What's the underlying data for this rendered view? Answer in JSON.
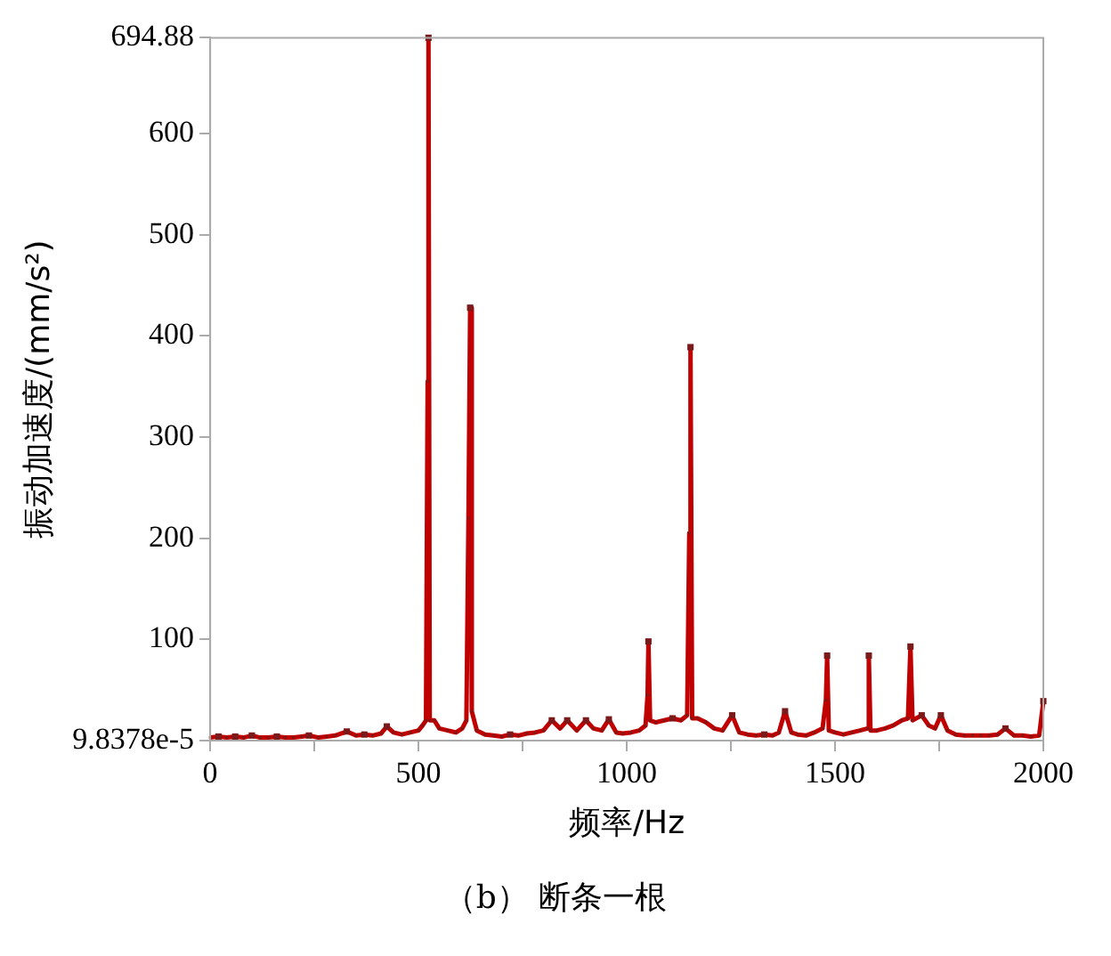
{
  "chart_data": {
    "type": "line",
    "xlabel": "频率/Hz",
    "ylabel": "振动加速度/(mm/s²)",
    "annotations": [
      "（b）  断条一根"
    ],
    "xlim": [
      0,
      2000
    ],
    "xticks": [
      0,
      {
        "value": 250,
        "label": null
      },
      500,
      {
        "value": 750,
        "label": null
      },
      1000,
      {
        "value": 1250,
        "label": null
      },
      1500,
      {
        "value": 1750,
        "label": null
      },
      2000
    ],
    "ylim": [
      9.8378e-05,
      694.88
    ],
    "yticks": [
      {
        "value": 9.8378e-05,
        "label": "9.8378e-5"
      },
      100,
      200,
      300,
      400,
      500,
      600,
      694.88
    ],
    "marker": "square",
    "line_style": "solid",
    "grid": false,
    "series": [
      {
        "color": "#c00000",
        "x": [
          0,
          20,
          40,
          60,
          80,
          100,
          120,
          140,
          160,
          180,
          200,
          220,
          237,
          260,
          280,
          300,
          328,
          350,
          370,
          390,
          410,
          424,
          440,
          460,
          480,
          500,
          510,
          518,
          522,
          524,
          527,
          538,
          550,
          570,
          590,
          605,
          615,
          620,
          624,
          628,
          640,
          660,
          680,
          700,
          720,
          740,
          760,
          780,
          800,
          820,
          840,
          857,
          880,
          902,
          920,
          940,
          957,
          975,
          990,
          1010,
          1030,
          1045,
          1050,
          1052,
          1056,
          1070,
          1090,
          1110,
          1130,
          1145,
          1150,
          1153,
          1157,
          1170,
          1190,
          1210,
          1230,
          1253,
          1270,
          1290,
          1310,
          1330,
          1350,
          1365,
          1380,
          1395,
          1410,
          1430,
          1450,
          1470,
          1478,
          1481,
          1485,
          1500,
          1520,
          1540,
          1560,
          1578,
          1581,
          1585,
          1600,
          1620,
          1640,
          1660,
          1675,
          1681,
          1686,
          1708,
          1725,
          1740,
          1754,
          1770,
          1790,
          1810,
          1830,
          1850,
          1870,
          1890,
          1909,
          1930,
          1950,
          1970,
          1990,
          2000
        ],
        "values": [
          3,
          4,
          3,
          4,
          3,
          5,
          3,
          3,
          4,
          3,
          3,
          4,
          5,
          3,
          4,
          5,
          9,
          5,
          6,
          5,
          7,
          14,
          8,
          6,
          8,
          10,
          15,
          20,
          355,
          694.88,
          20,
          20,
          12,
          10,
          8,
          12,
          20,
          220,
          428,
          29,
          10,
          6,
          5,
          4,
          6,
          5,
          7,
          8,
          10,
          20,
          12,
          20,
          10,
          20,
          12,
          10,
          21,
          8,
          7,
          8,
          10,
          15,
          45,
          98,
          20,
          18,
          20,
          22,
          20,
          25,
          205,
          389,
          22,
          22,
          18,
          12,
          10,
          25,
          8,
          6,
          5,
          6,
          5,
          8,
          29,
          8,
          6,
          5,
          8,
          12,
          40,
          84,
          10,
          8,
          6,
          8,
          10,
          12,
          84,
          10,
          10,
          12,
          15,
          20,
          22,
          93,
          20,
          25,
          15,
          12,
          25,
          10,
          6,
          5,
          5,
          5,
          5,
          6,
          12,
          5,
          5,
          4,
          5,
          39
        ]
      }
    ]
  }
}
